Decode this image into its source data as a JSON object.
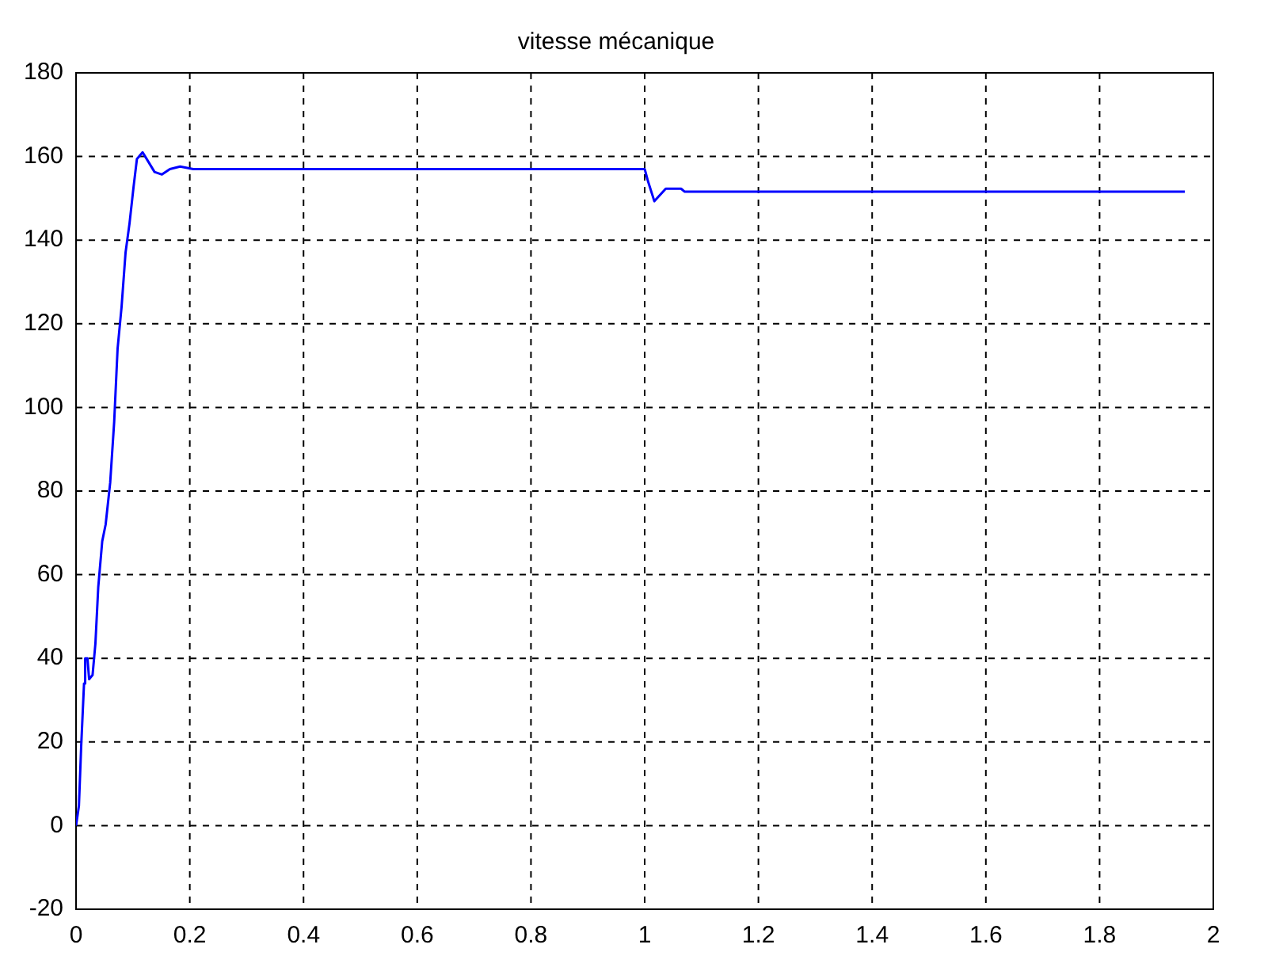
{
  "chart_data": {
    "type": "line",
    "title": "vitesse mécanique",
    "x": [
      0,
      0.005,
      0.009,
      0.014,
      0.016,
      0.02,
      0.023,
      0.029,
      0.034,
      0.039,
      0.046,
      0.052,
      0.06,
      0.067,
      0.073,
      0.08,
      0.087,
      0.094,
      0.101,
      0.107,
      0.117,
      0.126,
      0.138,
      0.151,
      0.165,
      0.183,
      0.206,
      0.5,
      1.0,
      1.006,
      1.017,
      1.037,
      1.064,
      1.07,
      1.5,
      1.95
    ],
    "series": [
      {
        "color": "#0000ff",
        "values": [
          0,
          4.7,
          19,
          34,
          40,
          40,
          35,
          36,
          43.5,
          57,
          68,
          72,
          82,
          96.5,
          114,
          124,
          137,
          144,
          152.6,
          159.4,
          161,
          159,
          156.3,
          155.7,
          157,
          157.6,
          157,
          157,
          157,
          154,
          149.3,
          152.3,
          152.3,
          151.6,
          151.6,
          151.6
        ]
      }
    ],
    "xlim": [
      0,
      2
    ],
    "xticks": [
      0,
      0.2,
      0.4,
      0.6,
      0.8,
      1,
      1.2,
      1.4,
      1.6,
      1.8,
      2
    ],
    "ylim": [
      -20,
      180
    ],
    "yticks": [
      -20,
      0,
      20,
      40,
      60,
      80,
      100,
      120,
      140,
      160,
      180
    ],
    "grid": true,
    "legend": false,
    "marker": "none",
    "line_style": "solid"
  }
}
